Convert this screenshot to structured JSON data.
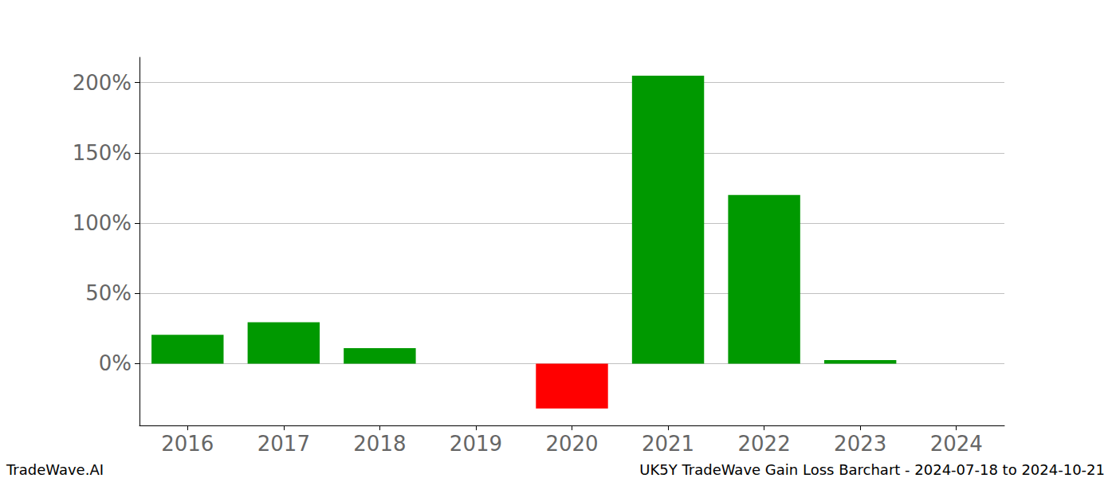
{
  "chart_data": {
    "type": "bar",
    "title": "UK5Y TradeWave Gain Loss Barchart - 2024-07-18 to 2024-10-21",
    "annotations": [
      "TradeWave.AI"
    ],
    "categories": [
      "2016",
      "2017",
      "2018",
      "2019",
      "2020",
      "2021",
      "2022",
      "2023",
      "2024"
    ],
    "values": [
      20.5,
      29.5,
      11,
      null,
      -32,
      205,
      120,
      2.5,
      null
    ],
    "colors": [
      "#009900",
      "#009900",
      "#009900",
      "#009900",
      "#ff0000",
      "#009900",
      "#009900",
      "#009900",
      "#009900"
    ],
    "ylim": [
      -44,
      218
    ],
    "yticks": [
      {
        "value": 0,
        "label": "0%"
      },
      {
        "value": 50,
        "label": "50%"
      },
      {
        "value": 100,
        "label": "100%"
      },
      {
        "value": 150,
        "label": "150%"
      },
      {
        "value": 200,
        "label": "200%"
      }
    ],
    "grid": true
  }
}
